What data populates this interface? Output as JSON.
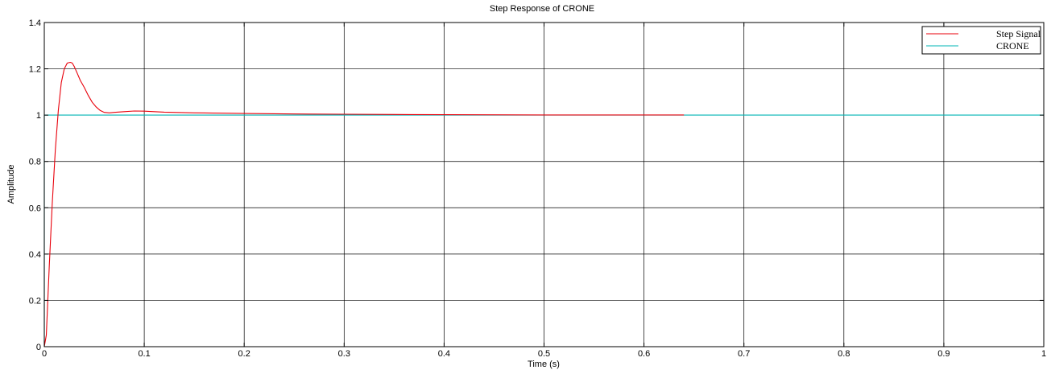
{
  "chart_data": {
    "type": "line",
    "title": "Step Response of CRONE",
    "xlabel": "Time (s)",
    "ylabel": "Amplitude",
    "xlim": [
      0,
      1
    ],
    "ylim": [
      0,
      1.4
    ],
    "xticks": [
      "0",
      "0.1",
      "0.2",
      "0.3",
      "0.4",
      "0.5",
      "0.6",
      "0.7",
      "0.8",
      "0.9",
      "1"
    ],
    "yticks": [
      "0",
      "0.2",
      "0.4",
      "0.6",
      "0.8",
      "1",
      "1.2",
      "1.4"
    ],
    "grid": true,
    "legend_position": "top-right",
    "series": [
      {
        "name": "Step Signal",
        "color": "#e8000b",
        "x": [
          0,
          0.002,
          0.005,
          0.008,
          0.011,
          0.014,
          0.017,
          0.02,
          0.023,
          0.026,
          0.028,
          0.03,
          0.033,
          0.036,
          0.04,
          0.044,
          0.048,
          0.052,
          0.056,
          0.06,
          0.065,
          0.07,
          0.08,
          0.09,
          0.1,
          0.11,
          0.12,
          0.15,
          0.2,
          0.25,
          0.3,
          0.35,
          0.4,
          0.5,
          0.6,
          0.64
        ],
        "y": [
          0,
          0.05,
          0.35,
          0.62,
          0.85,
          1.02,
          1.14,
          1.2,
          1.225,
          1.228,
          1.225,
          1.21,
          1.18,
          1.15,
          1.12,
          1.085,
          1.055,
          1.035,
          1.02,
          1.012,
          1.01,
          1.012,
          1.015,
          1.018,
          1.017,
          1.015,
          1.013,
          1.01,
          1.007,
          1.005,
          1.004,
          1.003,
          1.002,
          1.001,
          1.001,
          1.001
        ]
      },
      {
        "name": "CRONE",
        "color": "#00b4b4",
        "x": [
          0,
          0,
          1
        ],
        "y": [
          0,
          1,
          1
        ]
      }
    ]
  }
}
